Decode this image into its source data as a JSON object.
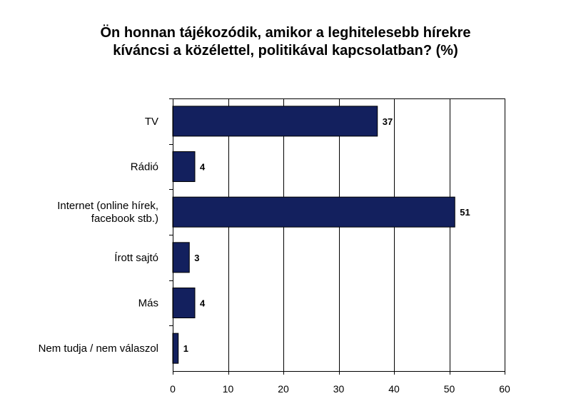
{
  "chart_data": {
    "type": "bar",
    "orientation": "horizontal",
    "title_lines": [
      "Ön honnan tájékozódik, amikor a leghitelesebb hírekre",
      "kíváncsi a közélettel, politikával kapcsolatban? (%)"
    ],
    "categories": [
      [
        "TV"
      ],
      [
        "Rádió"
      ],
      [
        "Internet (online hírek,",
        "facebook stb.)"
      ],
      [
        "Írott sajtó"
      ],
      [
        "Más"
      ],
      [
        "Nem tudja / nem válaszol"
      ]
    ],
    "values": [
      37,
      4,
      51,
      3,
      4,
      1
    ],
    "data_labels": [
      "37",
      "4",
      "51",
      "3",
      "4",
      "1"
    ],
    "xlim": [
      0,
      60
    ],
    "xticks": [
      0,
      10,
      20,
      30,
      40,
      50,
      60
    ],
    "grid": "vertical",
    "legend": "none",
    "bar_color": "#13205e",
    "bar_border_color": "#000000",
    "grid_color": "#000000"
  }
}
